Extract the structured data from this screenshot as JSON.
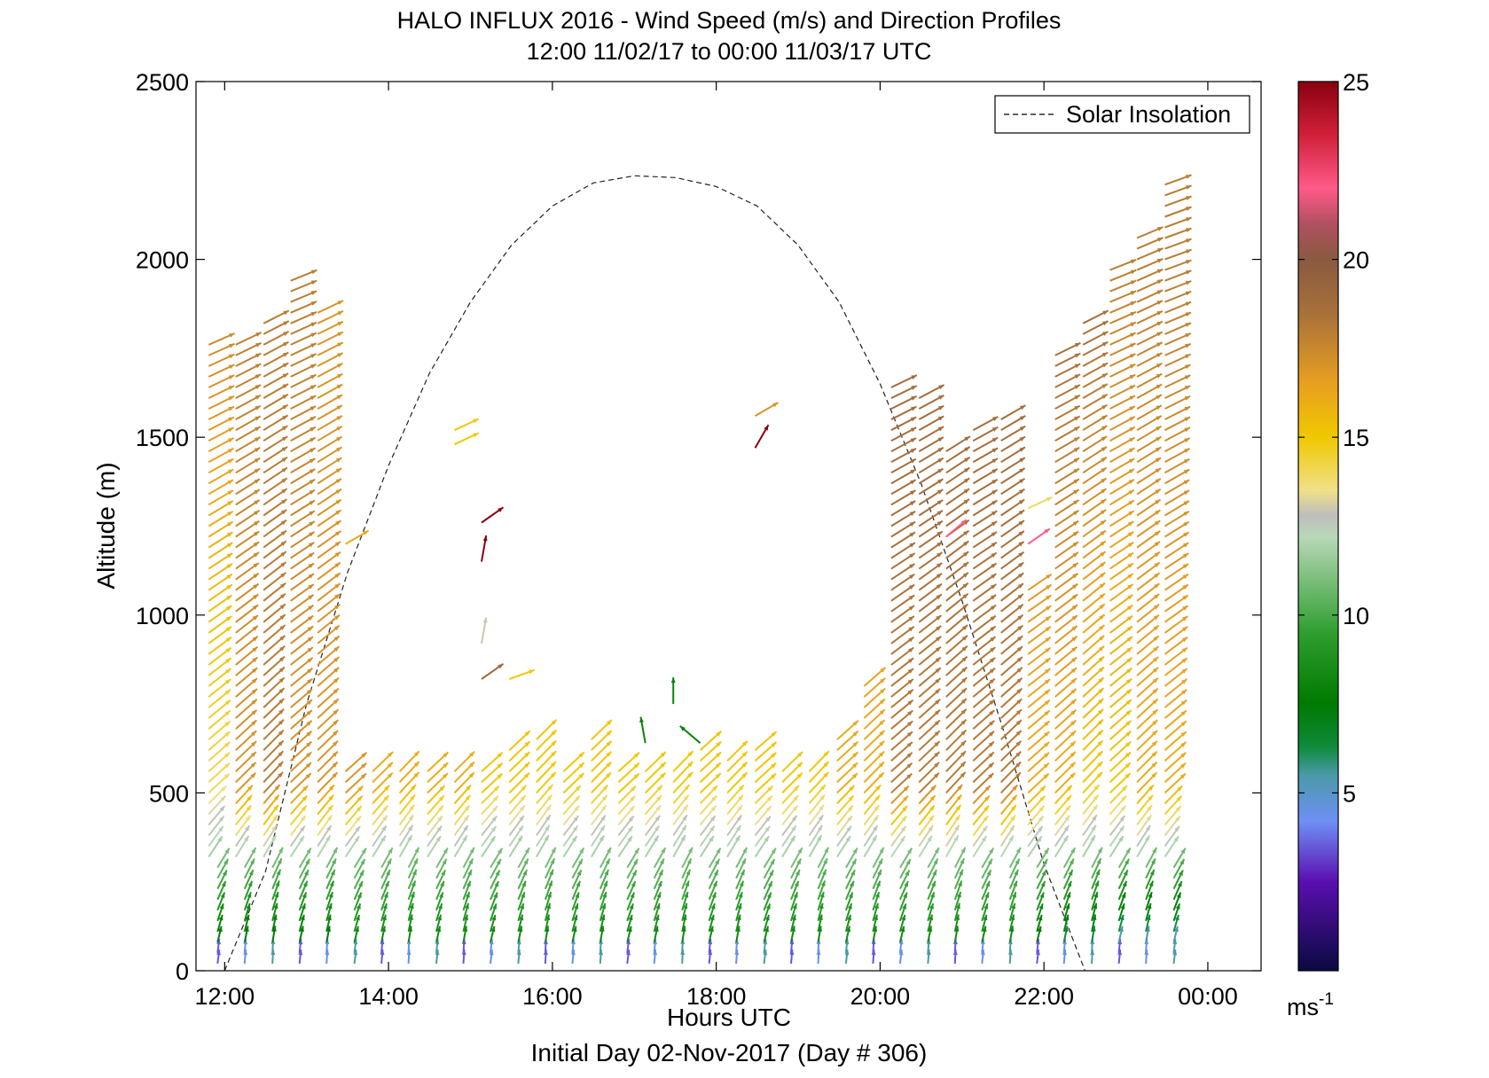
{
  "chart_data": {
    "type": "wind-barb-profile",
    "title": "HALO INFLUX 2016 - Wind Speed (m/s) and Direction Profiles",
    "subtitle": "12:00 11/02/17 to 00:00 11/03/17  UTC",
    "xlabel": "Hours UTC",
    "xlabel2": "Initial Day 02-Nov-2017 (Day # 306)",
    "ylabel": "Altitude (m)",
    "xlim_hours": [
      11.65,
      24.65
    ],
    "ylim": [
      0,
      2500
    ],
    "x_ticks": [
      12,
      14,
      16,
      18,
      20,
      22,
      24
    ],
    "x_tick_labels": [
      "12:00",
      "14:00",
      "16:00",
      "18:00",
      "20:00",
      "22:00",
      "00:00"
    ],
    "y_ticks": [
      0,
      500,
      1000,
      1500,
      2000,
      2500
    ],
    "y_tick_labels": [
      "0",
      "500",
      "1000",
      "1500",
      "2000",
      "2500"
    ],
    "legend": {
      "entries": [
        {
          "label": "Solar Insolation",
          "style": "dashed",
          "color": "#000000"
        }
      ],
      "placement": "top-right"
    },
    "colorbar": {
      "range": [
        0,
        25
      ],
      "ticks": [
        5,
        10,
        15,
        20,
        25
      ],
      "tick_labels": [
        "5",
        "10",
        "15",
        "20",
        "25"
      ],
      "unit": "ms",
      "unit_exp": "-1",
      "stops": [
        {
          "v": 0,
          "c": "#0a0a40"
        },
        {
          "v": 2.5,
          "c": "#5a0fb0"
        },
        {
          "v": 4.2,
          "c": "#6f8ff5"
        },
        {
          "v": 5.5,
          "c": "#4a9aa8"
        },
        {
          "v": 6.3,
          "c": "#0f8a3a"
        },
        {
          "v": 7.5,
          "c": "#007a00"
        },
        {
          "v": 9.5,
          "c": "#2f9e2f"
        },
        {
          "v": 12.2,
          "c": "#b8d8b8"
        },
        {
          "v": 12.8,
          "c": "#bdbdbd"
        },
        {
          "v": 13.5,
          "c": "#f0e08a"
        },
        {
          "v": 15,
          "c": "#f0c800"
        },
        {
          "v": 16.5,
          "c": "#e8a020"
        },
        {
          "v": 18.5,
          "c": "#a8703a"
        },
        {
          "v": 20,
          "c": "#8a5a40"
        },
        {
          "v": 21,
          "c": "#b05060"
        },
        {
          "v": 22,
          "c": "#ff5a88"
        },
        {
          "v": 23.5,
          "c": "#d0203a"
        },
        {
          "v": 25,
          "c": "#8a0010"
        }
      ]
    },
    "solar_insolation_curve": {
      "hours": [
        12.0,
        12.5,
        13.0,
        13.5,
        14.0,
        14.5,
        15.0,
        15.5,
        16.0,
        16.5,
        17.0,
        17.5,
        18.0,
        18.5,
        19.0,
        19.5,
        20.0,
        20.5,
        21.0,
        21.5,
        22.0,
        22.5,
        23.0,
        23.5,
        24.0
      ],
      "altitude_equiv_m": [
        0,
        280,
        750,
        1120,
        1420,
        1680,
        1880,
        2040,
        2150,
        2215,
        2235,
        2230,
        2205,
        2150,
        2040,
        1880,
        1650,
        1370,
        1040,
        680,
        300,
        0,
        0,
        0,
        0
      ]
    },
    "profiles": [
      {
        "hour": 12.0,
        "top": 1780,
        "spd_low": 7,
        "spd_mid": 14,
        "spd_high": 18
      },
      {
        "hour": 12.33,
        "top": 1780,
        "spd_low": 7,
        "spd_mid": 17,
        "spd_high": 18
      },
      {
        "hour": 12.67,
        "top": 1820,
        "spd_low": 7,
        "spd_mid": 18,
        "spd_high": 18
      },
      {
        "hour": 13.0,
        "top": 1960,
        "spd_low": 7,
        "spd_mid": 17,
        "spd_high": 18
      },
      {
        "hour": 13.33,
        "top": 1870,
        "spd_low": 7,
        "spd_mid": 17,
        "spd_high": 17
      },
      {
        "hour": 13.67,
        "top": 580,
        "spd_low": 8,
        "spd_mid": 17,
        "spd_high": 17
      },
      {
        "hour": 14.0,
        "top": 570,
        "spd_low": 8,
        "spd_mid": 16,
        "spd_high": 17
      },
      {
        "hour": 14.33,
        "top": 580,
        "spd_low": 8,
        "spd_mid": 16,
        "spd_high": 17
      },
      {
        "hour": 14.67,
        "top": 580,
        "spd_low": 8,
        "spd_mid": 16,
        "spd_high": 17
      },
      {
        "hour": 15.0,
        "top": 580,
        "spd_low": 8,
        "spd_mid": 16,
        "spd_high": 17
      },
      {
        "hour": 15.33,
        "top": 580,
        "spd_low": 8,
        "spd_mid": 15,
        "spd_high": 17
      },
      {
        "hour": 15.67,
        "top": 640,
        "spd_low": 8,
        "spd_mid": 15,
        "spd_high": 17
      },
      {
        "hour": 16.0,
        "top": 650,
        "spd_low": 8,
        "spd_mid": 15,
        "spd_high": 16
      },
      {
        "hour": 16.33,
        "top": 580,
        "spd_low": 8,
        "spd_mid": 15,
        "spd_high": 16
      },
      {
        "hour": 16.67,
        "top": 650,
        "spd_low": 8,
        "spd_mid": 15,
        "spd_high": 16
      },
      {
        "hour": 17.0,
        "top": 580,
        "spd_low": 8,
        "spd_mid": 15,
        "spd_high": 15
      },
      {
        "hour": 17.33,
        "top": 580,
        "spd_low": 8,
        "spd_mid": 15,
        "spd_high": 15
      },
      {
        "hour": 17.67,
        "top": 580,
        "spd_low": 8,
        "spd_mid": 15,
        "spd_high": 15
      },
      {
        "hour": 18.0,
        "top": 620,
        "spd_low": 8,
        "spd_mid": 15,
        "spd_high": 16
      },
      {
        "hour": 18.33,
        "top": 600,
        "spd_low": 8,
        "spd_mid": 15,
        "spd_high": 16
      },
      {
        "hour": 18.67,
        "top": 620,
        "spd_low": 8,
        "spd_mid": 15,
        "spd_high": 16
      },
      {
        "hour": 19.0,
        "top": 580,
        "spd_low": 8,
        "spd_mid": 15,
        "spd_high": 16
      },
      {
        "hour": 19.33,
        "top": 580,
        "spd_low": 8,
        "spd_mid": 15,
        "spd_high": 17
      },
      {
        "hour": 19.67,
        "top": 660,
        "spd_low": 8,
        "spd_mid": 16,
        "spd_high": 18
      },
      {
        "hour": 20.0,
        "top": 800,
        "spd_low": 8,
        "spd_mid": 16,
        "spd_high": 18
      },
      {
        "hour": 20.33,
        "top": 1650,
        "spd_low": 8,
        "spd_mid": 18,
        "spd_high": 19
      },
      {
        "hour": 20.67,
        "top": 1610,
        "spd_low": 8,
        "spd_mid": 18,
        "spd_high": 19
      },
      {
        "hour": 21.0,
        "top": 1470,
        "spd_low": 8,
        "spd_mid": 18,
        "spd_high": 19
      },
      {
        "hour": 21.33,
        "top": 1520,
        "spd_low": 8,
        "spd_mid": 18,
        "spd_high": 19
      },
      {
        "hour": 21.67,
        "top": 1560,
        "spd_low": 8,
        "spd_mid": 18,
        "spd_high": 19
      },
      {
        "hour": 22.0,
        "top": 1080,
        "spd_low": 7,
        "spd_mid": 16,
        "spd_high": 18
      },
      {
        "hour": 22.33,
        "top": 1740,
        "spd_low": 6,
        "spd_mid": 16,
        "spd_high": 19
      },
      {
        "hour": 22.67,
        "top": 1830,
        "spd_low": 6,
        "spd_mid": 15,
        "spd_high": 19
      },
      {
        "hour": 23.0,
        "top": 1970,
        "spd_low": 5,
        "spd_mid": 15,
        "spd_high": 18
      },
      {
        "hour": 23.33,
        "top": 2080,
        "spd_low": 5,
        "spd_mid": 16,
        "spd_high": 18
      },
      {
        "hour": 23.67,
        "top": 2230,
        "spd_low": 5,
        "spd_mid": 16,
        "spd_high": 18
      }
    ],
    "isolated_barbs": [
      {
        "hour": 13.67,
        "alt": 1200,
        "spd": 16,
        "dir": 30
      },
      {
        "hour": 15.0,
        "alt": 1520,
        "spd": 15,
        "dir": 25
      },
      {
        "hour": 15.0,
        "alt": 1480,
        "spd": 15,
        "dir": 25
      },
      {
        "hour": 15.33,
        "alt": 1260,
        "spd": 25,
        "dir": 35
      },
      {
        "hour": 15.33,
        "alt": 1150,
        "spd": 25,
        "dir": 80
      },
      {
        "hour": 15.33,
        "alt": 920,
        "spd": 13,
        "dir": 80
      },
      {
        "hour": 15.33,
        "alt": 820,
        "spd": 19,
        "dir": 35
      },
      {
        "hour": 15.67,
        "alt": 820,
        "spd": 15,
        "dir": 20
      },
      {
        "hour": 17.33,
        "alt": 640,
        "spd": 8,
        "dir": 100
      },
      {
        "hour": 17.67,
        "alt": 750,
        "spd": 8,
        "dir": 90
      },
      {
        "hour": 18.0,
        "alt": 640,
        "spd": 8,
        "dir": 140
      },
      {
        "hour": 18.67,
        "alt": 1560,
        "spd": 17,
        "dir": 30
      },
      {
        "hour": 18.67,
        "alt": 1470,
        "spd": 25,
        "dir": 60
      },
      {
        "hour": 21.0,
        "alt": 1220,
        "spd": 22,
        "dir": 40
      },
      {
        "hour": 22.0,
        "alt": 1300,
        "spd": 14,
        "dir": 25
      },
      {
        "hour": 22.0,
        "alt": 1200,
        "spd": 22,
        "dir": 35
      }
    ]
  }
}
